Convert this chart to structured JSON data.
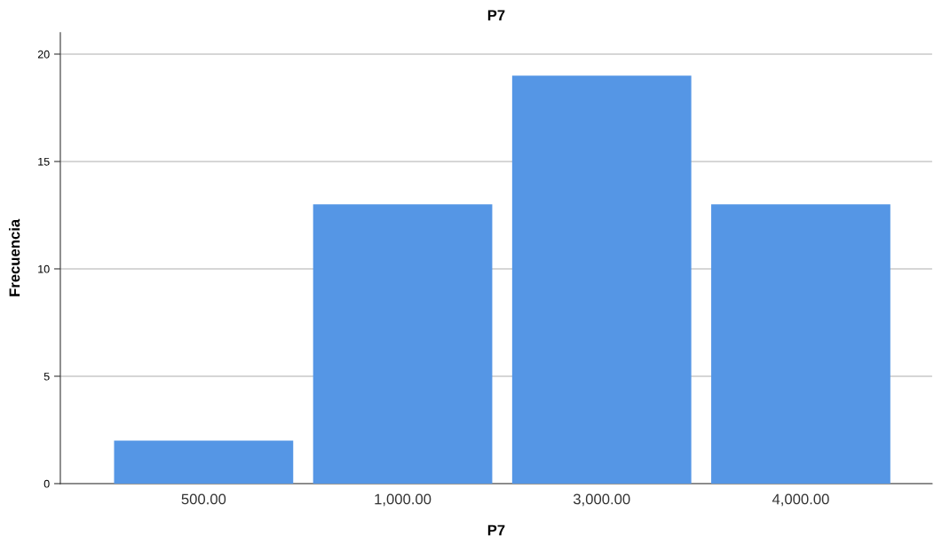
{
  "chart_data": {
    "type": "bar",
    "title": "P7",
    "xlabel": "P7",
    "ylabel": "Frecuencia",
    "categories": [
      "500.00",
      "1,000.00",
      "3,000.00",
      "4,000.00"
    ],
    "values": [
      2,
      13,
      19,
      13
    ],
    "color": "#5596e5",
    "ylim": [
      0,
      21
    ],
    "yticks": [
      0,
      5,
      10,
      15,
      20
    ],
    "grid": "y"
  }
}
